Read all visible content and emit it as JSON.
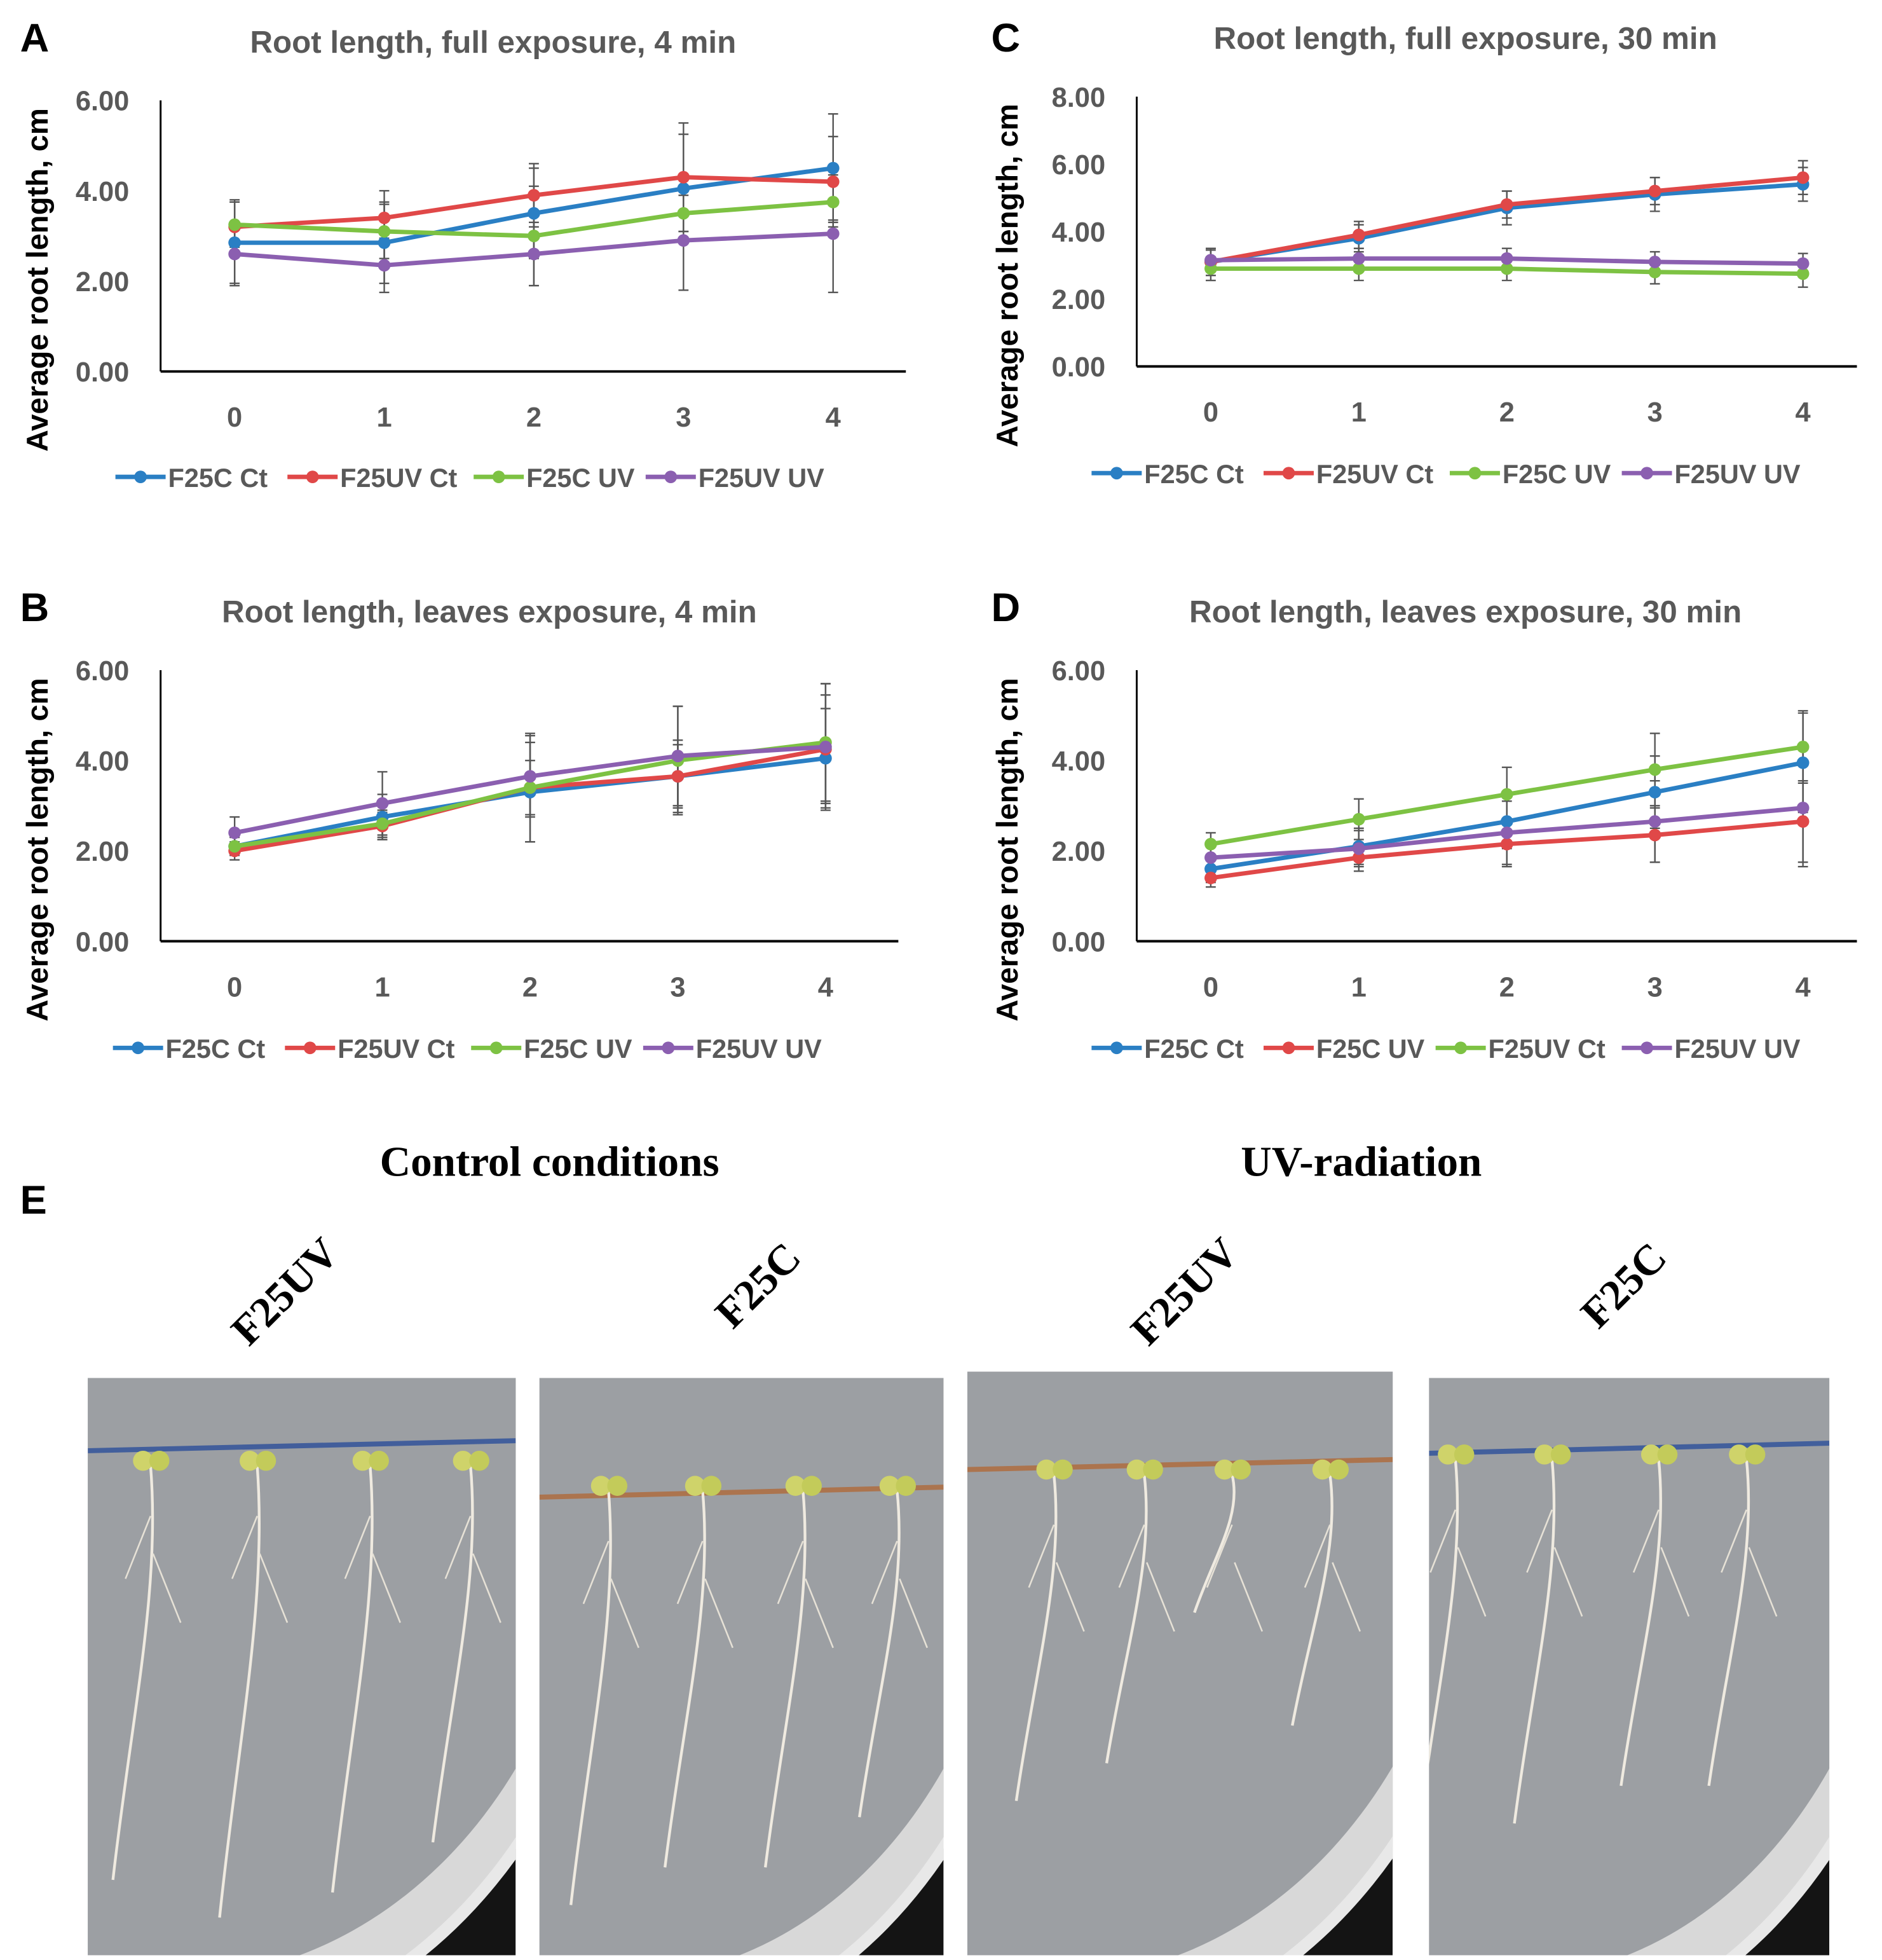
{
  "panel_letters": {
    "a": "A",
    "b": "B",
    "c": "C",
    "d": "D",
    "e": "E"
  },
  "chart_data": [
    {
      "id": "A",
      "type": "line",
      "title": "Root length, full exposure, 4 min",
      "ylabel": "Average root length, cm",
      "xlabel": "",
      "categories": [
        "0",
        "1",
        "2",
        "3",
        "4"
      ],
      "ylim": [
        0,
        6
      ],
      "yticks": [
        "0.00",
        "2.00",
        "4.00",
        "6.00"
      ],
      "legend": "bottom",
      "grid": false,
      "series": [
        {
          "name": "F25C Ct",
          "color": "#2a7fc4",
          "values": [
            2.85,
            2.85,
            3.5,
            4.05,
            4.5
          ],
          "error": [
            0.9,
            0.9,
            1.0,
            1.2,
            1.2
          ]
        },
        {
          "name": "F25UV Ct",
          "color": "#e04848",
          "values": [
            3.2,
            3.4,
            3.9,
            4.3,
            4.2
          ],
          "error": [
            0.6,
            0.6,
            0.7,
            1.2,
            1.0
          ]
        },
        {
          "name": "F25C UV",
          "color": "#7dc243",
          "values": [
            3.25,
            3.1,
            3.0,
            3.5,
            3.75
          ],
          "error": [
            0.5,
            0.6,
            1.1,
            0.4,
            0.4
          ]
        },
        {
          "name": "F25UV UV",
          "color": "#8b5fb0",
          "values": [
            2.6,
            2.35,
            2.6,
            2.9,
            3.05
          ],
          "error": [
            0.7,
            0.6,
            0.7,
            1.1,
            1.3
          ]
        }
      ]
    },
    {
      "id": "C",
      "type": "line",
      "title": "Root length, full exposure, 30 min",
      "ylabel": "Average root length, cm",
      "xlabel": "",
      "categories": [
        "0",
        "1",
        "2",
        "3",
        "4"
      ],
      "ylim": [
        0,
        8
      ],
      "yticks": [
        "0.00",
        "2.00",
        "4.00",
        "6.00",
        "8.00"
      ],
      "legend": "bottom",
      "grid": false,
      "series": [
        {
          "name": "F25C Ct",
          "color": "#2a7fc4",
          "values": [
            3.1,
            3.8,
            4.7,
            5.1,
            5.4
          ],
          "error": [
            0.4,
            0.4,
            0.5,
            0.5,
            0.5
          ]
        },
        {
          "name": "F25UV Ct",
          "color": "#e04848",
          "values": [
            3.1,
            3.9,
            4.8,
            5.2,
            5.6
          ],
          "error": [
            0.4,
            0.4,
            0.4,
            0.4,
            0.5
          ]
        },
        {
          "name": "F25C UV",
          "color": "#7dc243",
          "values": [
            2.9,
            2.9,
            2.9,
            2.8,
            2.75
          ],
          "error": [
            0.35,
            0.35,
            0.35,
            0.35,
            0.4
          ]
        },
        {
          "name": "F25UV UV",
          "color": "#8b5fb0",
          "values": [
            3.15,
            3.2,
            3.2,
            3.1,
            3.05
          ],
          "error": [
            0.3,
            0.3,
            0.3,
            0.3,
            0.3
          ]
        }
      ]
    },
    {
      "id": "B",
      "type": "line",
      "title": "Root length, leaves exposure, 4 min",
      "ylabel": "Average root length, cm",
      "xlabel": "",
      "categories": [
        "0",
        "1",
        "2",
        "3",
        "4"
      ],
      "ylim": [
        0,
        6
      ],
      "yticks": [
        "0.00",
        "2.00",
        "4.00",
        "6.00"
      ],
      "legend": "bottom",
      "grid": false,
      "series": [
        {
          "name": "F25C Ct",
          "color": "#2a7fc4",
          "values": [
            2.1,
            2.75,
            3.3,
            3.65,
            4.05
          ],
          "error": [
            0.2,
            0.5,
            1.1,
            0.8,
            1.1
          ]
        },
        {
          "name": "F25UV Ct",
          "color": "#e04848",
          "values": [
            2.0,
            2.55,
            3.4,
            3.65,
            4.25
          ],
          "error": [
            0.2,
            0.3,
            0.6,
            0.7,
            1.2
          ]
        },
        {
          "name": "F25C UV",
          "color": "#7dc243",
          "values": [
            2.1,
            2.6,
            3.4,
            4.0,
            4.4
          ],
          "error": [
            0.2,
            0.3,
            1.2,
            1.2,
            1.3
          ]
        },
        {
          "name": "F25UV UV",
          "color": "#8b5fb0",
          "values": [
            2.4,
            3.05,
            3.65,
            4.1,
            4.3
          ],
          "error": [
            0.35,
            0.7,
            0.9,
            1.1,
            1.4
          ]
        }
      ]
    },
    {
      "id": "D",
      "type": "line",
      "title": "Root length, leaves exposure, 30 min",
      "ylabel": "Average root length, cm",
      "xlabel": "",
      "categories": [
        "0",
        "1",
        "2",
        "3",
        "4"
      ],
      "ylim": [
        0,
        6
      ],
      "yticks": [
        "0.00",
        "2.00",
        "4.00",
        "6.00"
      ],
      "legend": "bottom",
      "grid": false,
      "series": [
        {
          "name": "F25C Ct",
          "color": "#2a7fc4",
          "values": [
            1.6,
            2.1,
            2.65,
            3.3,
            3.95
          ],
          "error": [
            0.3,
            0.4,
            0.6,
            0.8,
            1.1
          ]
        },
        {
          "name": "F25C UV",
          "color": "#e04848",
          "values": [
            1.4,
            1.85,
            2.15,
            2.35,
            2.65
          ],
          "error": [
            0.2,
            0.3,
            0.5,
            0.6,
            0.9
          ]
        },
        {
          "name": "F25UV Ct",
          "color": "#7dc243",
          "values": [
            2.15,
            2.7,
            3.25,
            3.8,
            4.3
          ],
          "error": [
            0.25,
            0.45,
            0.6,
            0.8,
            0.8
          ]
        },
        {
          "name": "F25UV UV",
          "color": "#8b5fb0",
          "values": [
            1.85,
            2.05,
            2.4,
            2.65,
            2.95
          ],
          "error": [
            0.3,
            0.4,
            0.7,
            0.9,
            1.3
          ]
        }
      ]
    }
  ],
  "photos": {
    "heading_control": "Control conditions",
    "heading_uv": "UV-radiation",
    "labels": [
      "F25UV",
      "F25C",
      "F25UV",
      "F25C"
    ]
  }
}
